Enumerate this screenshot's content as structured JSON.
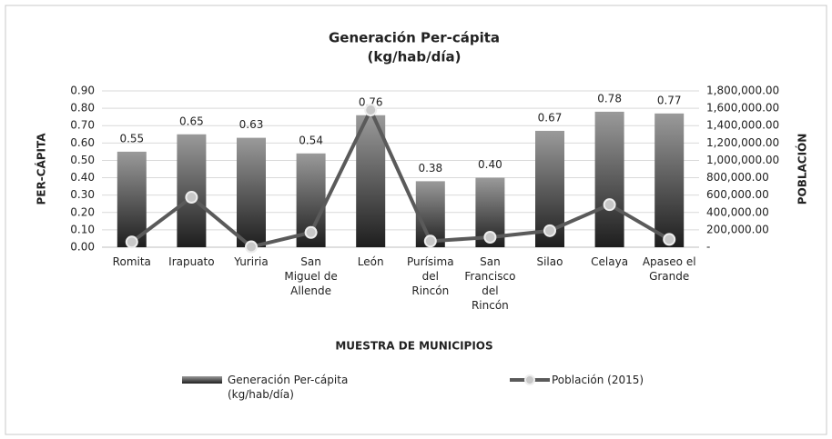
{
  "chart_data": {
    "type": "bar",
    "title": "Generación Per-cápita",
    "subtitle": "(kg/hab/día)",
    "x_label": "MUESTRA DE MUNICIPIOS",
    "y_label": "PER-CÁPITA",
    "y2_label": "POBLACIÓN",
    "categories": [
      "Romita",
      "Irapuato",
      "Yuriria",
      "San Miguel de Allende",
      "León",
      "Purísima del Rincón",
      "San Francisco del Rincón",
      "Silao",
      "Celaya",
      "Apaseo el Grande"
    ],
    "series": [
      {
        "name": "Generación Per-cápita (kg/hab/día)",
        "type": "bar",
        "color": "#6a6a6a",
        "values": [
          0.55,
          0.65,
          0.63,
          0.54,
          0.76,
          0.38,
          0.4,
          0.67,
          0.78,
          0.77
        ],
        "value_labels": [
          "0.55",
          "0.65",
          "0.63",
          "0.54",
          "0.76",
          "0.38",
          "0.40",
          "0.67",
          "0.78",
          "0.77"
        ]
      },
      {
        "name": "Población (2015)",
        "type": "line",
        "axis": "y2",
        "color": "#5a5a5a",
        "values": [
          60000,
          575000,
          5000,
          170000,
          1580000,
          70000,
          115000,
          190000,
          490000,
          90000
        ]
      }
    ],
    "ylim": [
      0,
      0.9
    ],
    "yticks": [
      {
        "value": 0,
        "label": "0.00"
      },
      {
        "value": 0.1,
        "label": "0.10"
      },
      {
        "value": 0.2,
        "label": "0.20"
      },
      {
        "value": 0.3,
        "label": "0.30"
      },
      {
        "value": 0.4,
        "label": "0.40"
      },
      {
        "value": 0.5,
        "label": "0.50"
      },
      {
        "value": 0.6,
        "label": "0.60"
      },
      {
        "value": 0.7,
        "label": "0.70"
      },
      {
        "value": 0.8,
        "label": "0.80"
      },
      {
        "value": 0.9,
        "label": "0.90"
      }
    ],
    "y2lim": [
      0,
      1800000
    ],
    "y2ticks": [
      {
        "value": 0,
        "label": "-"
      },
      {
        "value": 200000,
        "label": "200,000.00"
      },
      {
        "value": 400000,
        "label": "400,000.00"
      },
      {
        "value": 600000,
        "label": "600,000.00"
      },
      {
        "value": 800000,
        "label": "800,000.00"
      },
      {
        "value": 1000000,
        "label": "1,000,000.00"
      },
      {
        "value": 1200000,
        "label": "1,200,000.00"
      },
      {
        "value": 1400000,
        "label": "1,400,000.00"
      },
      {
        "value": 1600000,
        "label": "1,600,000.00"
      },
      {
        "value": 1800000,
        "label": "1,800,000.00"
      }
    ],
    "grid": true
  }
}
